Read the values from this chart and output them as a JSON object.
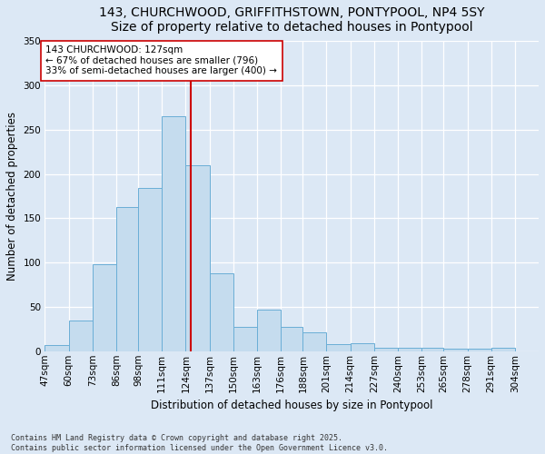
{
  "title_line1": "143, CHURCHWOOD, GRIFFITHSTOWN, PONTYPOOL, NP4 5SY",
  "title_line2": "Size of property relative to detached houses in Pontypool",
  "xlabel": "Distribution of detached houses by size in Pontypool",
  "ylabel": "Number of detached properties",
  "footnote": "Contains HM Land Registry data © Crown copyright and database right 2025.\nContains public sector information licensed under the Open Government Licence v3.0.",
  "bin_labels": [
    "47sqm",
    "60sqm",
    "73sqm",
    "86sqm",
    "98sqm",
    "111sqm",
    "124sqm",
    "137sqm",
    "150sqm",
    "163sqm",
    "176sqm",
    "188sqm",
    "201sqm",
    "214sqm",
    "227sqm",
    "240sqm",
    "253sqm",
    "265sqm",
    "278sqm",
    "291sqm",
    "304sqm"
  ],
  "bin_edges": [
    47,
    60,
    73,
    86,
    98,
    111,
    124,
    137,
    150,
    163,
    176,
    188,
    201,
    214,
    227,
    240,
    253,
    265,
    278,
    291,
    304
  ],
  "bin_counts": [
    7,
    35,
    98,
    163,
    184,
    265,
    210,
    88,
    27,
    47,
    27,
    21,
    8,
    9,
    4,
    4,
    4,
    3,
    3,
    4
  ],
  "bar_color": "#c5dcee",
  "bar_edge_color": "#6aaed6",
  "vline_x": 127,
  "vline_color": "#cc0000",
  "annotation_text": "143 CHURCHWOOD: 127sqm\n← 67% of detached houses are smaller (796)\n33% of semi-detached houses are larger (400) →",
  "annotation_box_color": "#ffffff",
  "annotation_box_edge": "#cc0000",
  "ylim": [
    0,
    350
  ],
  "yticks": [
    0,
    50,
    100,
    150,
    200,
    250,
    300,
    350
  ],
  "bg_color": "#dce8f5",
  "fig_bg_color": "#dce8f5",
  "title_fontsize": 10,
  "label_fontsize": 8.5,
  "tick_fontsize": 7.5,
  "annot_fontsize": 7.5
}
